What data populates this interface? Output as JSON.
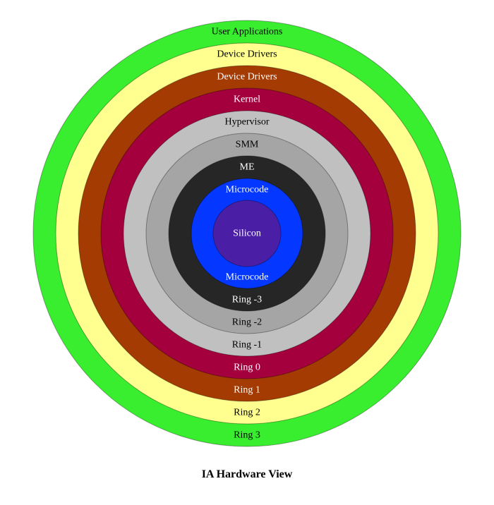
{
  "title": "IA Hardware View",
  "rings": [
    {
      "top_label": "User Applications",
      "bottom_label": "Ring 3",
      "fill": "#39ee2f",
      "text_color": "#000000"
    },
    {
      "top_label": "Device Drivers",
      "bottom_label": "Ring 2",
      "fill": "#ffff8f",
      "text_color": "#000000"
    },
    {
      "top_label": "Device Drivers",
      "bottom_label": "Ring 1",
      "fill": "#a33b02",
      "text_color": "#ffffff"
    },
    {
      "top_label": "Kernel",
      "bottom_label": "Ring 0",
      "fill": "#a4003d",
      "text_color": "#ffffff"
    },
    {
      "top_label": "Hypervisor",
      "bottom_label": "Ring -1",
      "fill": "#c0c0c0",
      "text_color": "#000000"
    },
    {
      "top_label": "SMM",
      "bottom_label": "Ring -2",
      "fill": "#a5a5a5",
      "text_color": "#000000"
    },
    {
      "top_label": "ME",
      "bottom_label": "Ring -3",
      "fill": "#262626",
      "text_color": "#ffffff"
    },
    {
      "top_label": "Microcode",
      "bottom_label": "Microcode",
      "fill": "#0437ff",
      "text_color": "#ffffff"
    }
  ],
  "core": {
    "label": "Silicon",
    "fill": "#4a1fa6",
    "text_color": "#ffffff"
  }
}
